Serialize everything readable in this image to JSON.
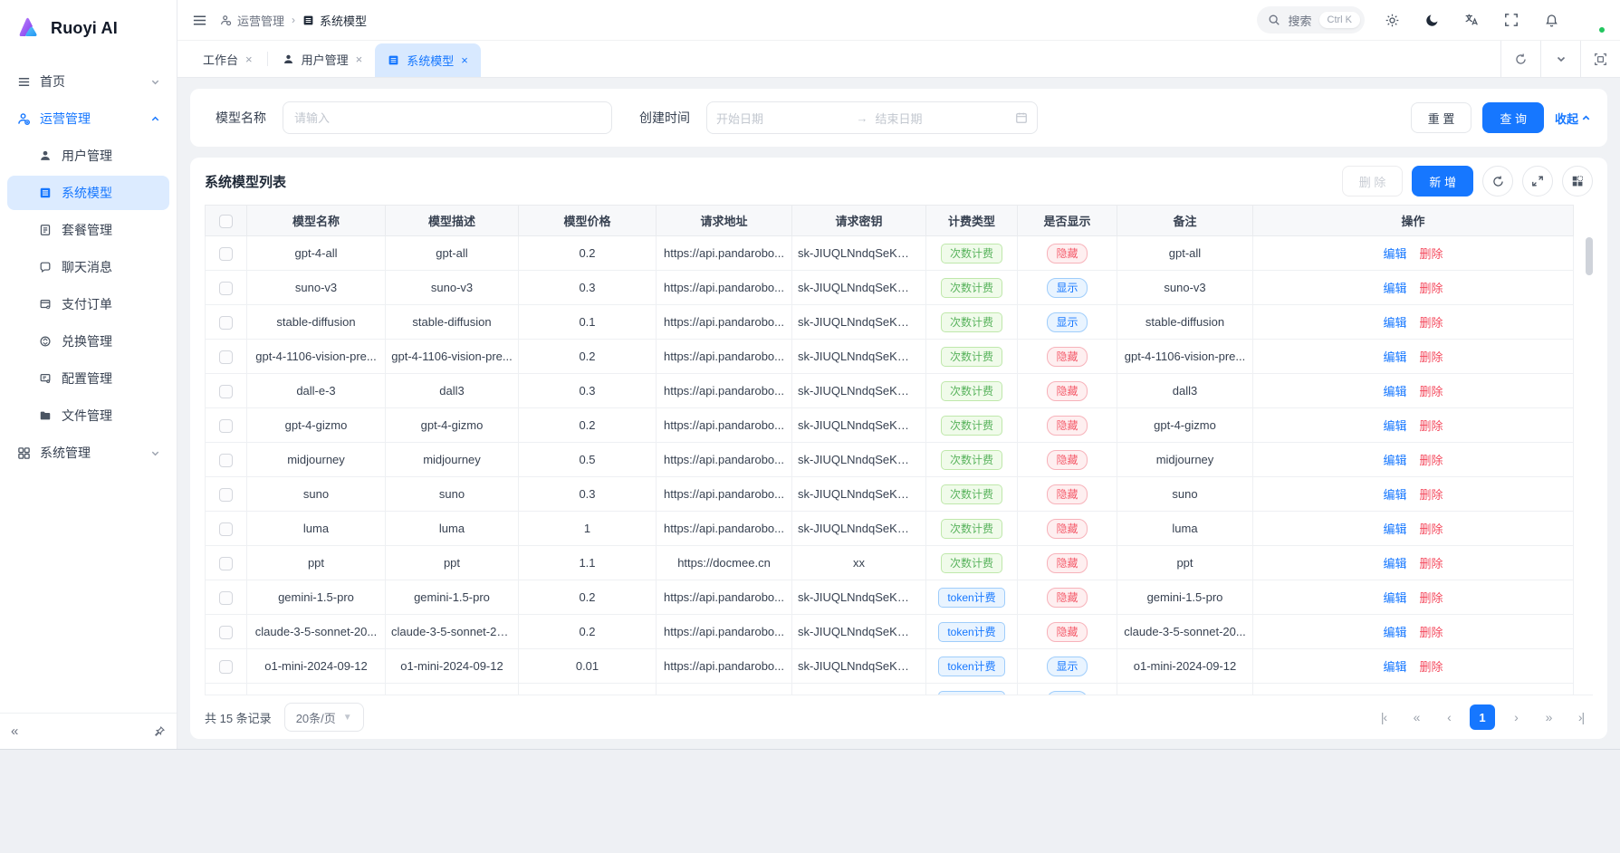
{
  "brand": {
    "name": "Ruoyi AI"
  },
  "colors": {
    "primary": "#1677ff",
    "success": "#52c41a",
    "danger": "#ff4d4f"
  },
  "sidebar": {
    "home": {
      "label": "首页"
    },
    "group_ops": {
      "label": "运营管理"
    },
    "children": [
      {
        "label": "用户管理"
      },
      {
        "label": "系统模型"
      },
      {
        "label": "套餐管理"
      },
      {
        "label": "聊天消息"
      },
      {
        "label": "支付订单"
      },
      {
        "label": "兑换管理"
      },
      {
        "label": "配置管理"
      },
      {
        "label": "文件管理"
      }
    ],
    "group_system": {
      "label": "系统管理"
    }
  },
  "navbar": {
    "breadcrumb": [
      "运营管理",
      "系统模型"
    ],
    "search_label": "搜索",
    "search_shortcut": "Ctrl K"
  },
  "tabs": [
    {
      "label": "工作台"
    },
    {
      "label": "用户管理"
    },
    {
      "label": "系统模型"
    }
  ],
  "filter": {
    "name_label": "模型名称",
    "name_placeholder": "请输入",
    "time_label": "创建时间",
    "start_placeholder": "开始日期",
    "end_placeholder": "结束日期",
    "reset_label": "重 置",
    "search_label": "查 询",
    "collapse_label": "收起"
  },
  "table": {
    "title": "系统模型列表",
    "delete_label": "删 除",
    "add_label": "新 增",
    "columns": [
      "模型名称",
      "模型描述",
      "模型价格",
      "请求地址",
      "请求密钥",
      "计费类型",
      "是否显示",
      "备注",
      "操作"
    ],
    "actions": {
      "edit": "编辑",
      "del": "删除"
    },
    "rows": [
      {
        "name": "gpt-4-all",
        "desc": "gpt-all",
        "price": "0.2",
        "url": "https://api.pandarobo...",
        "key": "sk-JIUQLNndqSeKWU...",
        "billing": "次数计费",
        "billing_type": "count",
        "visible": "隐藏",
        "visible_type": "hide",
        "remark": "gpt-all"
      },
      {
        "name": "suno-v3",
        "desc": "suno-v3",
        "price": "0.3",
        "url": "https://api.pandarobo...",
        "key": "sk-JIUQLNndqSeKWU...",
        "billing": "次数计费",
        "billing_type": "count",
        "visible": "显示",
        "visible_type": "show",
        "remark": "suno-v3"
      },
      {
        "name": "stable-diffusion",
        "desc": "stable-diffusion",
        "price": "0.1",
        "url": "https://api.pandarobo...",
        "key": "sk-JIUQLNndqSeKWU...",
        "billing": "次数计费",
        "billing_type": "count",
        "visible": "显示",
        "visible_type": "show",
        "remark": "stable-diffusion"
      },
      {
        "name": "gpt-4-1106-vision-pre...",
        "desc": "gpt-4-1106-vision-pre...",
        "price": "0.2",
        "url": "https://api.pandarobo...",
        "key": "sk-JIUQLNndqSeKWU...",
        "billing": "次数计费",
        "billing_type": "count",
        "visible": "隐藏",
        "visible_type": "hide",
        "remark": "gpt-4-1106-vision-pre..."
      },
      {
        "name": "dall-e-3",
        "desc": "dall3",
        "price": "0.3",
        "url": "https://api.pandarobo...",
        "key": "sk-JIUQLNndqSeKWU...",
        "billing": "次数计费",
        "billing_type": "count",
        "visible": "隐藏",
        "visible_type": "hide",
        "remark": "dall3"
      },
      {
        "name": "gpt-4-gizmo",
        "desc": "gpt-4-gizmo",
        "price": "0.2",
        "url": "https://api.pandarobo...",
        "key": "sk-JIUQLNndqSeKWU...",
        "billing": "次数计费",
        "billing_type": "count",
        "visible": "隐藏",
        "visible_type": "hide",
        "remark": "gpt-4-gizmo"
      },
      {
        "name": "midjourney",
        "desc": "midjourney",
        "price": "0.5",
        "url": "https://api.pandarobo...",
        "key": "sk-JIUQLNndqSeKWU...",
        "billing": "次数计费",
        "billing_type": "count",
        "visible": "隐藏",
        "visible_type": "hide",
        "remark": "midjourney"
      },
      {
        "name": "suno",
        "desc": "suno",
        "price": "0.3",
        "url": "https://api.pandarobo...",
        "key": "sk-JIUQLNndqSeKWU...",
        "billing": "次数计费",
        "billing_type": "count",
        "visible": "隐藏",
        "visible_type": "hide",
        "remark": "suno"
      },
      {
        "name": "luma",
        "desc": "luma",
        "price": "1",
        "url": "https://api.pandarobo...",
        "key": "sk-JIUQLNndqSeKWU...",
        "billing": "次数计费",
        "billing_type": "count",
        "visible": "隐藏",
        "visible_type": "hide",
        "remark": "luma"
      },
      {
        "name": "ppt",
        "desc": "ppt",
        "price": "1.1",
        "url": "https://docmee.cn",
        "key": "xx",
        "billing": "次数计费",
        "billing_type": "count",
        "visible": "隐藏",
        "visible_type": "hide",
        "remark": "ppt"
      },
      {
        "name": "gemini-1.5-pro",
        "desc": "gemini-1.5-pro",
        "price": "0.2",
        "url": "https://api.pandarobo...",
        "key": "sk-JIUQLNndqSeKWU...",
        "billing": "token计费",
        "billing_type": "token",
        "visible": "隐藏",
        "visible_type": "hide",
        "remark": "gemini-1.5-pro"
      },
      {
        "name": "claude-3-5-sonnet-20...",
        "desc": "claude-3-5-sonnet-20...",
        "price": "0.2",
        "url": "https://api.pandarobo...",
        "key": "sk-JIUQLNndqSeKWU...",
        "billing": "token计费",
        "billing_type": "token",
        "visible": "隐藏",
        "visible_type": "hide",
        "remark": "claude-3-5-sonnet-20..."
      },
      {
        "name": "o1-mini-2024-09-12",
        "desc": "o1-mini-2024-09-12",
        "price": "0.01",
        "url": "https://api.pandarobo...",
        "key": "sk-JIUQLNndqSeKWU...",
        "billing": "token计费",
        "billing_type": "token",
        "visible": "显示",
        "visible_type": "show",
        "remark": "o1-mini-2024-09-12"
      },
      {
        "name": "",
        "desc": "",
        "price": "",
        "url": "",
        "key": "",
        "billing": "token计费",
        "billing_type": "token",
        "visible": "显示",
        "visible_type": "show",
        "remark": ""
      }
    ]
  },
  "pagination": {
    "total_text": "共 15 条记录",
    "page_size": "20条/页",
    "current_page": "1"
  }
}
